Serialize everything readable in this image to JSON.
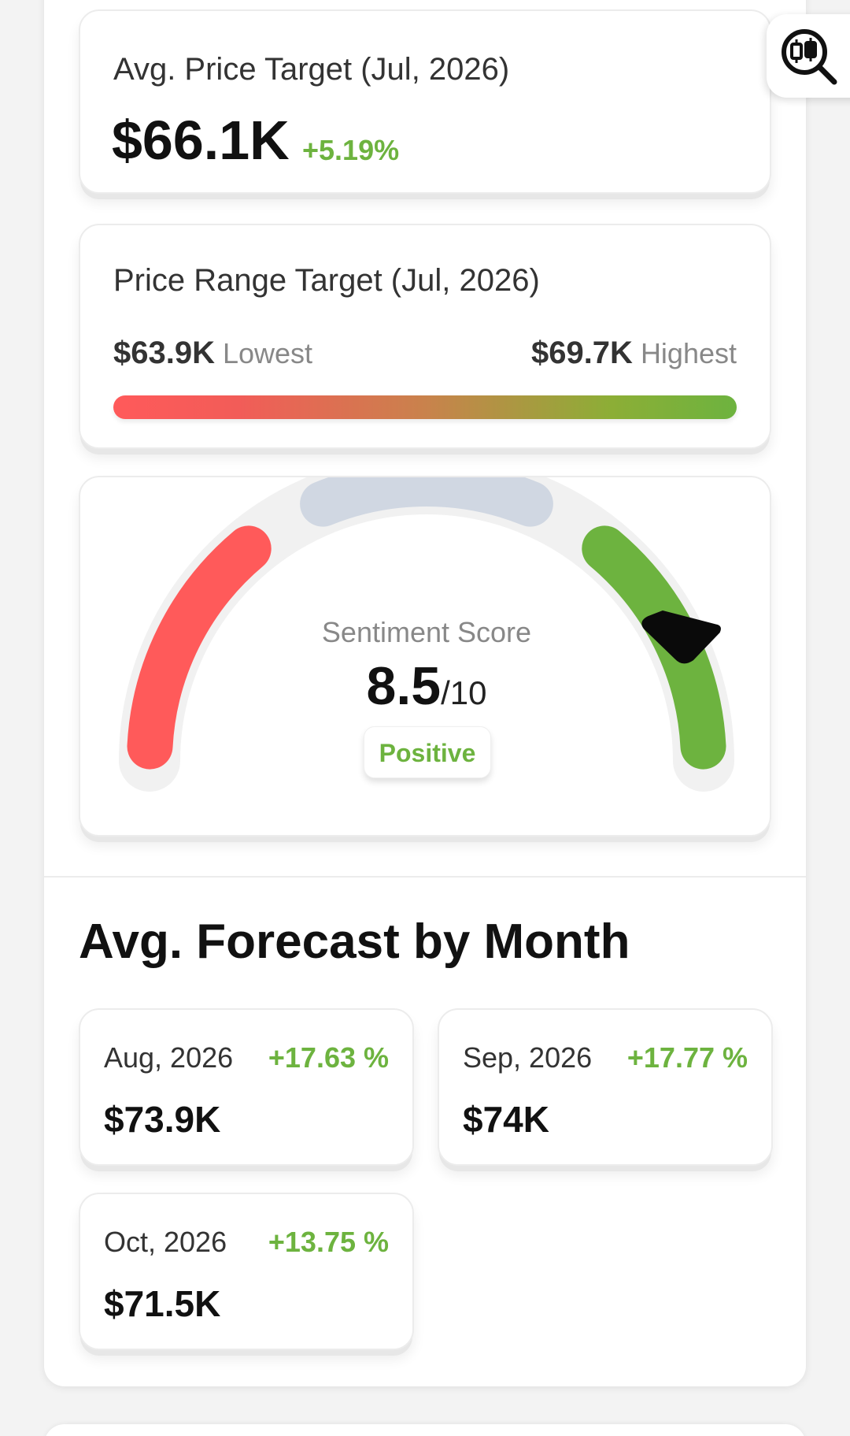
{
  "avg_target": {
    "label": "Avg. Price Target (Jul, 2026)",
    "value": "$66.1K",
    "change": "+5.19%"
  },
  "range_target": {
    "label": "Price Range Target (Jul, 2026)",
    "lowest_value": "$63.9K",
    "lowest_label": "Lowest",
    "highest_value": "$69.7K",
    "highest_label": "Highest"
  },
  "sentiment": {
    "title": "Sentiment Score",
    "score": "8.5",
    "max": "/10",
    "score_value": 8.5,
    "score_max": 10,
    "label": "Positive",
    "colors": {
      "negative": "#ff5a5a",
      "neutral": "#d0d7e2",
      "positive": "#6db33f"
    }
  },
  "forecast": {
    "title": "Avg. Forecast by Month",
    "months": [
      {
        "label": "Aug, 2026",
        "change": "+17.63 %",
        "value": "$73.9K"
      },
      {
        "label": "Sep, 2026",
        "change": "+17.77 %",
        "value": "$74K"
      },
      {
        "label": "Oct, 2026",
        "change": "+13.75 %",
        "value": "$71.5K"
      }
    ]
  },
  "toolbar": {
    "icon": "chart-search-icon"
  },
  "colors": {
    "accent_green": "#6db33f",
    "accent_red": "#ff5a5a"
  }
}
